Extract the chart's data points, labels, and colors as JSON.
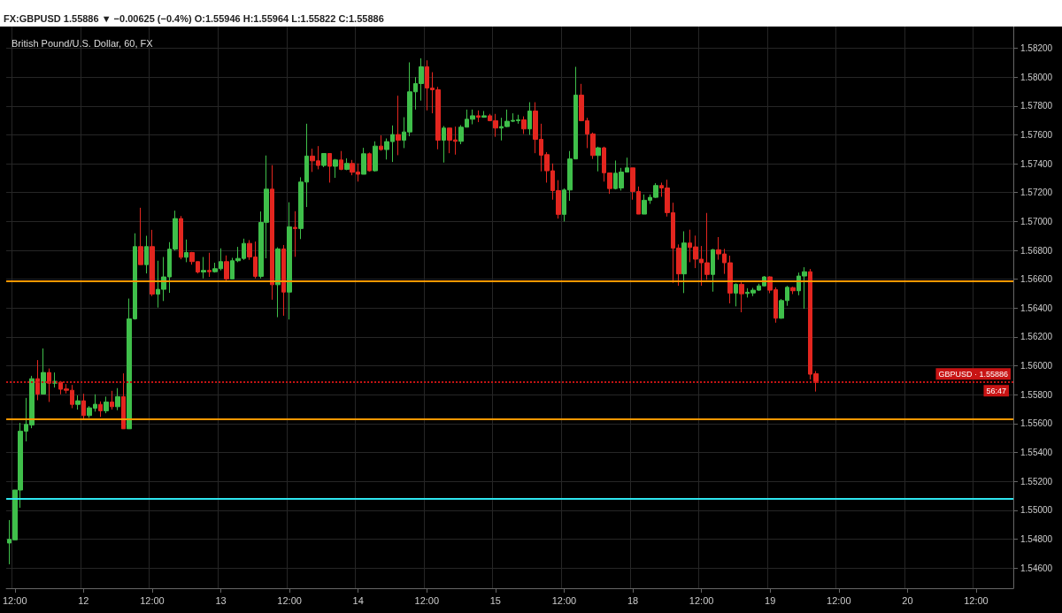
{
  "chart_data": {
    "type": "candlestick",
    "title": "FX:GBPUSD 1.55886 ▼ −0.00625 (−0.4%) O:1.55946 H:1.55964 L:1.55822 C:1.55886",
    "subtitle": "British Pound/U.S. Dollar, 60, FX",
    "categories": [
      null,
      "12:00",
      null,
      null,
      null,
      null,
      null,
      null,
      null,
      null,
      null,
      null,
      null,
      "12",
      null,
      null,
      null,
      null,
      null,
      null,
      null,
      null,
      null,
      null,
      null,
      "12:00",
      null,
      null,
      null,
      null,
      null,
      null,
      null,
      null,
      null,
      null,
      null,
      "13",
      null,
      null,
      null,
      null,
      null,
      null,
      null,
      null,
      null,
      null,
      null,
      "12:00",
      null,
      null,
      null,
      null,
      null,
      null,
      null,
      null,
      null,
      null,
      null,
      "14",
      null,
      null,
      null,
      null,
      null,
      null,
      null,
      null,
      null,
      null,
      null,
      "12:00",
      null,
      null,
      null,
      null,
      null,
      null,
      null,
      null,
      null,
      null,
      null,
      "15",
      null,
      null,
      null,
      null,
      null,
      null,
      null,
      null,
      null,
      null,
      null,
      "12:00",
      null,
      null,
      null,
      null,
      null,
      null,
      null,
      null,
      null,
      null,
      null,
      "18",
      null,
      null,
      null,
      null,
      null,
      null,
      null,
      null,
      null,
      null,
      null,
      "12:00",
      null,
      null,
      null,
      null,
      null,
      null,
      null,
      null,
      null,
      null,
      null,
      "19",
      null,
      null,
      null,
      null,
      null,
      null,
      null,
      null,
      null,
      null,
      null,
      "12:00",
      null,
      null,
      null,
      null,
      null,
      null,
      null,
      null,
      null,
      null,
      null,
      "20",
      null,
      null,
      null,
      null,
      null,
      null,
      null,
      null,
      null,
      null,
      null,
      "12:00",
      null,
      null,
      null,
      null,
      null,
      null
    ],
    "ohlc": [
      [
        1.54773,
        1.54932,
        1.54626,
        1.54799
      ],
      [
        1.54795,
        1.5514,
        1.54795,
        1.5514
      ],
      [
        1.5514,
        1.55605,
        1.55017,
        1.55548
      ],
      [
        1.55548,
        1.55778,
        1.55477,
        1.55595
      ],
      [
        1.55591,
        1.55931,
        1.55568,
        1.55911
      ],
      [
        1.55911,
        1.5604,
        1.55762,
        1.55805
      ],
      [
        1.55805,
        1.56121,
        1.55805,
        1.55954
      ],
      [
        1.55954,
        1.55982,
        1.5575,
        1.5588
      ],
      [
        1.5588,
        1.55954,
        1.5585,
        1.55893
      ],
      [
        1.55887,
        1.55895,
        1.55803,
        1.55838
      ],
      [
        1.5584,
        1.55874,
        1.55809,
        1.55831
      ],
      [
        1.55831,
        1.55868,
        1.55707,
        1.55733
      ],
      [
        1.55733,
        1.55795,
        1.55697,
        1.55758
      ],
      [
        1.55758,
        1.55807,
        1.55632,
        1.55656
      ],
      [
        1.55656,
        1.55721,
        1.5564,
        1.55709
      ],
      [
        1.55707,
        1.55803,
        1.55683,
        1.55734
      ],
      [
        1.55733,
        1.55754,
        1.55646,
        1.55689
      ],
      [
        1.55689,
        1.55787,
        1.55672,
        1.5575
      ],
      [
        1.5575,
        1.55827,
        1.55697,
        1.55717
      ],
      [
        1.55717,
        1.55846,
        1.55693,
        1.55787
      ],
      [
        1.55787,
        1.55948,
        1.55564,
        1.55564
      ],
      [
        1.55564,
        1.56466,
        1.55564,
        1.56325
      ],
      [
        1.56326,
        1.56918,
        1.5632,
        1.56826
      ],
      [
        1.56826,
        1.57095,
        1.56701,
        1.56701
      ],
      [
        1.56701,
        1.56901,
        1.5664,
        1.56826
      ],
      [
        1.56826,
        1.56942,
        1.56483,
        1.56497
      ],
      [
        1.56497,
        1.56728,
        1.56404,
        1.5653
      ],
      [
        1.5653,
        1.56754,
        1.56449,
        1.56616
      ],
      [
        1.56616,
        1.56857,
        1.56506,
        1.56808
      ],
      [
        1.56808,
        1.57075,
        1.56799,
        1.5702
      ],
      [
        1.5702,
        1.57038,
        1.56738,
        1.56752
      ],
      [
        1.56752,
        1.56875,
        1.56718,
        1.56785
      ],
      [
        1.56785,
        1.56789,
        1.56701,
        1.56722
      ],
      [
        1.56722,
        1.56722,
        1.5664,
        1.5665
      ],
      [
        1.5665,
        1.56754,
        1.56606,
        1.56661
      ],
      [
        1.56661,
        1.56783,
        1.56616,
        1.56652
      ],
      [
        1.56652,
        1.56714,
        1.56646,
        1.56673
      ],
      [
        1.56673,
        1.56814,
        1.56661,
        1.56722
      ],
      [
        1.56722,
        1.56765,
        1.56585,
        1.56602
      ],
      [
        1.56602,
        1.56748,
        1.56602,
        1.56728
      ],
      [
        1.56728,
        1.56824,
        1.56718,
        1.56744
      ],
      [
        1.56744,
        1.56881,
        1.56734,
        1.56848
      ],
      [
        1.56848,
        1.56871,
        1.56734,
        1.56754
      ],
      [
        1.56754,
        1.56861,
        1.56606,
        1.5662
      ],
      [
        1.5662,
        1.57069,
        1.56606,
        1.56993
      ],
      [
        1.56994,
        1.57457,
        1.56745,
        1.57224
      ],
      [
        1.57224,
        1.5739,
        1.56458,
        1.56562
      ],
      [
        1.56562,
        1.56821,
        1.56337,
        1.5681
      ],
      [
        1.5681,
        1.56837,
        1.56347,
        1.56511
      ],
      [
        1.56511,
        1.57133,
        1.56321,
        1.56963
      ],
      [
        1.56959,
        1.57071,
        1.56755,
        1.56951
      ],
      [
        1.56951,
        1.57306,
        1.56878,
        1.57273
      ],
      [
        1.57273,
        1.57677,
        1.571,
        1.57453
      ],
      [
        1.57453,
        1.57504,
        1.57343,
        1.5742
      ],
      [
        1.5742,
        1.57522,
        1.57361,
        1.57388
      ],
      [
        1.57388,
        1.57471,
        1.57376,
        1.57471
      ],
      [
        1.57471,
        1.57471,
        1.57269,
        1.57382
      ],
      [
        1.57382,
        1.57433,
        1.57302,
        1.57426
      ],
      [
        1.57426,
        1.57488,
        1.57355,
        1.57361
      ],
      [
        1.57361,
        1.57437,
        1.57355,
        1.57402
      ],
      [
        1.57402,
        1.57426,
        1.5732,
        1.57341
      ],
      [
        1.57343,
        1.57402,
        1.57276,
        1.57327
      ],
      [
        1.57327,
        1.5751,
        1.57327,
        1.57469
      ],
      [
        1.57469,
        1.57477,
        1.57345,
        1.57351
      ],
      [
        1.57351,
        1.57555,
        1.57345,
        1.57522
      ],
      [
        1.57522,
        1.57596,
        1.5749,
        1.57498
      ],
      [
        1.57498,
        1.57575,
        1.57429,
        1.57553
      ],
      [
        1.57553,
        1.57665,
        1.57412,
        1.57602
      ],
      [
        1.57602,
        1.57871,
        1.57459,
        1.57563
      ],
      [
        1.57563,
        1.57722,
        1.57508,
        1.5762
      ],
      [
        1.5762,
        1.58102,
        1.5759,
        1.57898
      ],
      [
        1.57898,
        1.58,
        1.57775,
        1.57955
      ],
      [
        1.57955,
        1.5813,
        1.57837,
        1.58071
      ],
      [
        1.58071,
        1.58116,
        1.57769,
        1.57924
      ],
      [
        1.57924,
        1.58034,
        1.57749,
        1.57912
      ],
      [
        1.57912,
        1.57932,
        1.575,
        1.57563
      ],
      [
        1.57563,
        1.57661,
        1.57408,
        1.57647
      ],
      [
        1.57647,
        1.57647,
        1.57473,
        1.57563
      ],
      [
        1.57565,
        1.57657,
        1.57463,
        1.57555
      ],
      [
        1.57555,
        1.57667,
        1.57535,
        1.57653
      ],
      [
        1.57653,
        1.57775,
        1.57653,
        1.57708
      ],
      [
        1.57708,
        1.57775,
        1.57673,
        1.57732
      ],
      [
        1.57732,
        1.57769,
        1.57688,
        1.57722
      ],
      [
        1.57722,
        1.57765,
        1.57718,
        1.57732
      ],
      [
        1.57732,
        1.57745,
        1.57694,
        1.57698
      ],
      [
        1.57698,
        1.57745,
        1.57586,
        1.57647
      ],
      [
        1.57647,
        1.57718,
        1.57561,
        1.57657
      ],
      [
        1.57657,
        1.57775,
        1.57653,
        1.57694
      ],
      [
        1.57694,
        1.57749,
        1.57688,
        1.577
      ],
      [
        1.57698,
        1.57739,
        1.57677,
        1.57704
      ],
      [
        1.57704,
        1.57728,
        1.57606,
        1.57641
      ],
      [
        1.57641,
        1.57826,
        1.576,
        1.57765
      ],
      [
        1.57765,
        1.57826,
        1.57473,
        1.57569
      ],
      [
        1.57569,
        1.57677,
        1.57347,
        1.57459
      ],
      [
        1.57463,
        1.5748,
        1.57269,
        1.57351
      ],
      [
        1.57351,
        1.57402,
        1.57151,
        1.57214
      ],
      [
        1.57214,
        1.57286,
        1.5702,
        1.57049
      ],
      [
        1.57049,
        1.57229,
        1.57,
        1.57218
      ],
      [
        1.57218,
        1.57488,
        1.57143,
        1.57433
      ],
      [
        1.57433,
        1.58071,
        1.57433,
        1.57875
      ],
      [
        1.57875,
        1.57953,
        1.57694,
        1.57698
      ],
      [
        1.57698,
        1.57718,
        1.57508,
        1.57606
      ],
      [
        1.57606,
        1.57616,
        1.57433,
        1.57457
      ],
      [
        1.57457,
        1.57518,
        1.57347,
        1.5751
      ],
      [
        1.5751,
        1.57518,
        1.57276,
        1.57337
      ],
      [
        1.57336,
        1.57336,
        1.57191,
        1.57228
      ],
      [
        1.57228,
        1.57422,
        1.57222,
        1.57334
      ],
      [
        1.57232,
        1.57371,
        1.57214,
        1.57342
      ],
      [
        1.57342,
        1.57442,
        1.57342,
        1.57371
      ],
      [
        1.57371,
        1.57371,
        1.57151,
        1.57208
      ],
      [
        1.57208,
        1.57242,
        1.57051,
        1.57051
      ],
      [
        1.57051,
        1.57187,
        1.57051,
        1.57147
      ],
      [
        1.57147,
        1.57187,
        1.57122,
        1.57167
      ],
      [
        1.57167,
        1.57265,
        1.57163,
        1.57249
      ],
      [
        1.57249,
        1.57269,
        1.57171,
        1.57232
      ],
      [
        1.57232,
        1.57289,
        1.57034,
        1.57061
      ],
      [
        1.57061,
        1.5713,
        1.56575,
        1.56816
      ],
      [
        1.56816,
        1.56841,
        1.56555,
        1.56637
      ],
      [
        1.56637,
        1.56932,
        1.56504,
        1.56851
      ],
      [
        1.56851,
        1.56943,
        1.56718,
        1.5682
      ],
      [
        1.56824,
        1.56902,
        1.56677,
        1.56739
      ],
      [
        1.56739,
        1.5683,
        1.56555,
        1.56714
      ],
      [
        1.56714,
        1.57059,
        1.56596,
        1.56633
      ],
      [
        1.56633,
        1.5681,
        1.56514,
        1.56804
      ],
      [
        1.56804,
        1.56892,
        1.56735,
        1.56775
      ],
      [
        1.56775,
        1.5681,
        1.56637,
        1.56714
      ],
      [
        1.56714,
        1.56763,
        1.56433,
        1.56504
      ],
      [
        1.56504,
        1.56571,
        1.56412,
        1.56565
      ],
      [
        1.56565,
        1.56579,
        1.56371,
        1.56499
      ],
      [
        1.56501,
        1.56538,
        1.56473,
        1.5651
      ],
      [
        1.56505,
        1.5654,
        1.56483,
        1.56524
      ],
      [
        1.56524,
        1.56569,
        1.5652,
        1.56554
      ],
      [
        1.56554,
        1.56622,
        1.5655,
        1.56616
      ],
      [
        1.56616,
        1.5662,
        1.56503,
        1.56524
      ],
      [
        1.56528,
        1.56544,
        1.56299,
        1.5633
      ],
      [
        1.5633,
        1.56463,
        1.56326,
        1.56452
      ],
      [
        1.56452,
        1.56554,
        1.56416,
        1.56544
      ],
      [
        1.56542,
        1.56548,
        1.56497,
        1.5652
      ],
      [
        1.5652,
        1.56646,
        1.56489,
        1.56622
      ],
      [
        1.56622,
        1.56683,
        1.56395,
        1.56652
      ],
      [
        1.56652,
        1.56671,
        1.55906,
        1.55942
      ],
      [
        1.55946,
        1.55964,
        1.55822,
        1.55886
      ],
      null,
      null,
      null,
      null,
      null,
      null,
      null,
      null,
      null,
      null,
      null,
      null,
      null,
      null,
      null,
      null,
      null,
      null,
      null,
      null,
      null,
      null,
      null,
      null,
      null,
      null,
      null,
      null,
      null,
      null,
      null,
      null,
      null,
      null
    ],
    "colors": [
      "#3fbf4a",
      "#3fbf4a",
      "#3fbf4a",
      "#3fbf4a",
      "#3fbf4a",
      "#e3261f",
      "#3fbf4a",
      "#e3261f",
      "#3fbf4a",
      "#e3261f",
      "#e3261f",
      "#e3261f",
      "#3fbf4a",
      "#e3261f",
      "#3fbf4a",
      "#3fbf4a",
      "#e3261f",
      "#3fbf4a",
      "#e3261f",
      "#3fbf4a",
      "#e3261f",
      "#3fbf4a",
      "#3fbf4a",
      "#e3261f",
      "#3fbf4a",
      "#e3261f",
      "#3fbf4a",
      "#3fbf4a",
      "#3fbf4a",
      "#3fbf4a",
      "#e3261f",
      "#3fbf4a",
      "#e3261f",
      "#e3261f",
      "#3fbf4a",
      "#e3261f",
      "#3fbf4a",
      "#3fbf4a",
      "#e3261f",
      "#3fbf4a",
      "#3fbf4a",
      "#3fbf4a",
      "#e3261f",
      "#e3261f",
      "#3fbf4a",
      "#3fbf4a",
      "#e3261f",
      "#3fbf4a",
      "#e3261f",
      "#3fbf4a",
      "#e3261f",
      "#3fbf4a",
      "#3fbf4a",
      "#e3261f",
      "#e3261f",
      "#3fbf4a",
      "#e3261f",
      "#3fbf4a",
      "#e3261f",
      "#3fbf4a",
      "#e3261f",
      "#e3261f",
      "#3fbf4a",
      "#e3261f",
      "#3fbf4a",
      "#e3261f",
      "#3fbf4a",
      "#3fbf4a",
      "#e3261f",
      "#3fbf4a",
      "#3fbf4a",
      "#3fbf4a",
      "#3fbf4a",
      "#e3261f",
      "#e3261f",
      "#e3261f",
      "#3fbf4a",
      "#e3261f",
      "#e3261f",
      "#3fbf4a",
      "#3fbf4a",
      "#3fbf4a",
      "#e3261f",
      "#3fbf4a",
      "#e3261f",
      "#e3261f",
      "#3fbf4a",
      "#3fbf4a",
      "#3fbf4a",
      "#3fbf4a",
      "#e3261f",
      "#3fbf4a",
      "#e3261f",
      "#e3261f",
      "#e3261f",
      "#e3261f",
      "#e3261f",
      "#3fbf4a",
      "#3fbf4a",
      "#3fbf4a",
      "#e3261f",
      "#e3261f",
      "#e3261f",
      "#3fbf4a",
      "#e3261f",
      "#e3261f",
      "#3fbf4a",
      "#3fbf4a",
      "#3fbf4a",
      "#e3261f",
      "#e3261f",
      "#3fbf4a",
      "#3fbf4a",
      "#3fbf4a",
      "#e3261f",
      "#e3261f",
      "#e3261f",
      "#e3261f",
      "#3fbf4a",
      "#e3261f",
      "#e3261f",
      "#e3261f",
      "#e3261f",
      "#3fbf4a",
      "#e3261f",
      "#e3261f",
      "#e3261f",
      "#3fbf4a",
      "#e3261f",
      "#3fbf4a",
      "#3fbf4a",
      "#3fbf4a",
      "#3fbf4a",
      "#e3261f",
      "#e3261f",
      "#3fbf4a",
      "#3fbf4a",
      "#e3261f",
      "#3fbf4a",
      "#3fbf4a",
      "#e3261f",
      "#e3261f",
      null,
      null,
      null,
      null,
      null,
      null,
      null,
      null,
      null,
      null,
      null,
      null,
      null,
      null,
      null,
      null,
      null,
      null,
      null,
      null,
      null,
      null,
      null,
      null,
      null,
      null,
      null,
      null,
      null,
      null,
      null,
      null,
      null,
      null
    ],
    "ylim": [
      1.5446,
      1.5835
    ],
    "yticks": [
      {
        "value": 1.546,
        "label": "1.54600"
      },
      {
        "value": 1.548,
        "label": "1.54800"
      },
      {
        "value": 1.55,
        "label": "1.55000"
      },
      {
        "value": 1.552,
        "label": "1.55200"
      },
      {
        "value": 1.554,
        "label": "1.55400"
      },
      {
        "value": 1.556,
        "label": "1.55600"
      },
      {
        "value": 1.558,
        "label": "1.55800"
      },
      {
        "value": 1.56,
        "label": "1.56000"
      },
      {
        "value": 1.562,
        "label": "1.56200"
      },
      {
        "value": 1.564,
        "label": "1.56400"
      },
      {
        "value": 1.566,
        "label": "1.56600"
      },
      {
        "value": 1.568,
        "label": "1.56800"
      },
      {
        "value": 1.57,
        "label": "1.57000"
      },
      {
        "value": 1.572,
        "label": "1.57200"
      },
      {
        "value": 1.574,
        "label": "1.57400"
      },
      {
        "value": 1.576,
        "label": "1.57600"
      },
      {
        "value": 1.578,
        "label": "1.57800"
      },
      {
        "value": 1.58,
        "label": "1.58000"
      },
      {
        "value": 1.582,
        "label": "1.58200"
      }
    ],
    "ref_lines": [
      {
        "axis": "y",
        "value": 1.5659,
        "color": "#ff9800",
        "line_style": "solid"
      },
      {
        "axis": "y",
        "value": 1.5563,
        "color": "#ff9800",
        "line_style": "solid"
      },
      {
        "axis": "y",
        "value": 1.5508,
        "color": "#2ee6f0",
        "line_style": "solid"
      },
      {
        "axis": "y",
        "value": 1.55886,
        "color": "#c81414",
        "line_style": "dotted",
        "label": "GBPUSD · 1.55886"
      }
    ],
    "annotations": [
      "56:47"
    ],
    "grid": true
  }
}
